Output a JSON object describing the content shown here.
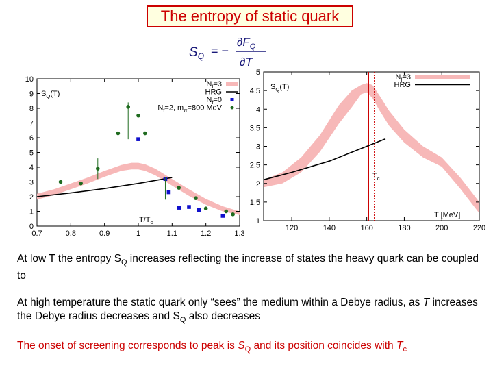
{
  "title": "The entropy of static quark",
  "formula": {
    "lhs": "S",
    "lhs_sub": "Q",
    "eq": "= −",
    "num": "∂F",
    "num_sub": "Q",
    "den": "∂T"
  },
  "colors": {
    "band": "#f7b8b8",
    "hrg": "#000000",
    "nf0": "#1010cc",
    "nf2": "#1f6b1f",
    "tc_solid": "#cc0000",
    "tc_dotted": "#cc0000",
    "title": "#cc0000"
  },
  "chart_data": [
    {
      "type": "scatter",
      "xlabel": "T/T",
      "xlabel_sub": "c",
      "ylabel": "S",
      "ylabel_sub": "Q",
      "ylabel_suffix": "(T)",
      "xlim": [
        0.7,
        1.3
      ],
      "ylim": [
        0,
        10
      ],
      "xticks": [
        0.7,
        0.8,
        0.9,
        1,
        1.1,
        1.2,
        1.3
      ],
      "xtick_labels": [
        "0.7",
        "0.8",
        "0.9",
        "1",
        "1.1",
        "1.2",
        "1.3"
      ],
      "yticks": [
        0,
        1,
        2,
        3,
        4,
        5,
        6,
        7,
        8,
        9,
        10
      ],
      "ytick_labels": [
        "0",
        "1",
        "2",
        "3",
        "4",
        "5",
        "6",
        "7",
        "8",
        "9",
        "10"
      ],
      "legend": [
        {
          "label": "N",
          "sub": "f",
          "suffix": "=3",
          "kind": "band"
        },
        {
          "label": "HRG",
          "sub": "",
          "suffix": "",
          "kind": "line"
        },
        {
          "label": "N",
          "sub": "f",
          "suffix": "=0",
          "kind": "square"
        },
        {
          "label": "N",
          "sub": "f",
          "suffix": "=2, m",
          "sub2": "π",
          "suffix2": "=800 MeV",
          "kind": "circle"
        }
      ],
      "series": [
        {
          "name": "Nf=3 band",
          "x": [
            0.7,
            0.75,
            0.8,
            0.85,
            0.9,
            0.95,
            0.98,
            1.0,
            1.02,
            1.05,
            1.1,
            1.15,
            1.2,
            1.25,
            1.3
          ],
          "low": [
            1.8,
            2.1,
            2.5,
            2.9,
            3.35,
            3.75,
            3.85,
            3.85,
            3.75,
            3.45,
            2.75,
            2.05,
            1.45,
            1.0,
            0.75
          ],
          "high": [
            2.2,
            2.5,
            2.9,
            3.3,
            3.75,
            4.15,
            4.3,
            4.3,
            4.2,
            3.9,
            3.2,
            2.5,
            1.85,
            1.35,
            1.0
          ]
        },
        {
          "name": "HRG",
          "x": [
            0.7,
            0.8,
            0.9,
            1.0,
            1.1
          ],
          "y": [
            2.0,
            2.25,
            2.55,
            2.9,
            3.3
          ]
        },
        {
          "name": "Nf=0",
          "x": [
            1.0,
            1.08,
            1.09,
            1.12,
            1.15,
            1.18,
            1.25
          ],
          "y": [
            5.9,
            3.2,
            2.3,
            1.25,
            1.3,
            1.1,
            0.7
          ]
        },
        {
          "name": "Nf=2, mπ=800 MeV",
          "x": [
            0.77,
            0.83,
            0.88,
            0.94,
            0.97,
            1.0,
            1.02,
            1.12,
            1.17,
            1.2,
            1.26,
            1.28
          ],
          "y": [
            3.0,
            2.9,
            3.9,
            6.3,
            8.1,
            7.5,
            6.3,
            2.6,
            1.9,
            1.2,
            1.0,
            0.8
          ]
        }
      ]
    },
    {
      "type": "line",
      "xlabel": "T [MeV]",
      "ylabel": "S",
      "ylabel_sub": "Q",
      "ylabel_suffix": "(T)",
      "xlim": [
        105,
        220
      ],
      "ylim": [
        1,
        5
      ],
      "xticks": [
        120,
        140,
        160,
        180,
        200,
        220
      ],
      "xtick_labels": [
        "120",
        "140",
        "160",
        "180",
        "200",
        "220"
      ],
      "yticks": [
        1,
        1.5,
        2,
        2.5,
        3,
        3.5,
        4,
        4.5,
        5
      ],
      "ytick_labels": [
        "1",
        "1.5",
        "2",
        "2.5",
        "3",
        "3.5",
        "4",
        "4.5",
        "5"
      ],
      "legend": [
        {
          "label": "N",
          "sub": "f",
          "suffix": "=3",
          "kind": "band"
        },
        {
          "label": "HRG",
          "sub": "",
          "suffix": "",
          "kind": "line"
        }
      ],
      "annotation": {
        "label": "T",
        "sub": "c"
      },
      "tc_solid": 161,
      "tc_dotted": 164,
      "series": [
        {
          "name": "Nf=3 band",
          "x": [
            105,
            115,
            125,
            135,
            145,
            152,
            157,
            160,
            163,
            167,
            172,
            180,
            190,
            200,
            210,
            220
          ],
          "low": [
            1.9,
            2.0,
            2.3,
            2.85,
            3.6,
            4.05,
            4.4,
            4.45,
            4.3,
            3.95,
            3.55,
            3.1,
            2.7,
            2.45,
            1.85,
            1.2
          ],
          "high": [
            2.1,
            2.3,
            2.7,
            3.3,
            4.1,
            4.5,
            4.65,
            4.7,
            4.65,
            4.35,
            3.95,
            3.45,
            3.0,
            2.7,
            2.15,
            1.5
          ]
        },
        {
          "name": "HRG",
          "x": [
            105,
            120,
            140,
            160,
            170
          ],
          "y": [
            2.1,
            2.3,
            2.6,
            3.0,
            3.2
          ]
        }
      ]
    }
  ],
  "paragraphs": {
    "p1_a": "At low T the entropy S",
    "p1_sub": "Q",
    "p1_b": " increases reflecting the increase of states the heavy quark can be coupled to",
    "p2_a": "At high temperature the static quark only “sees” the medium within a Debye radius, as ",
    "p2_t": "T",
    "p2_b": " increases the Debye radius decreases and S",
    "p2_sub": "Q",
    "p2_c": " also decreases",
    "p3_a": "The onset of screening corresponds to peak is ",
    "p3_s": "S",
    "p3_sub": "Q",
    "p3_b": " and its position coincides with ",
    "p3_t": "T",
    "p3_tsub": "c"
  }
}
